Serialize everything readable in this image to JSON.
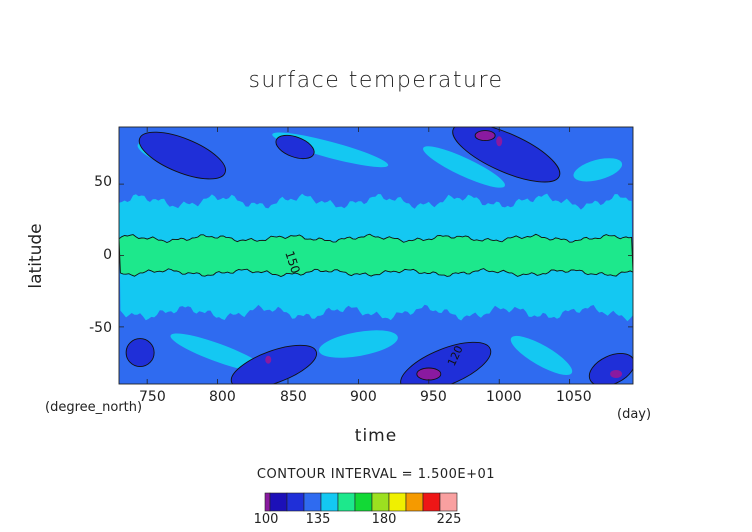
{
  "chart_data": {
    "type": "heatmap",
    "title": "surface temperature",
    "xlabel": "time",
    "ylabel": "latitude",
    "x_unit": "(day)",
    "y_unit": "(degree_north)",
    "xlim": [
      730,
      1095
    ],
    "ylim": [
      -90,
      90
    ],
    "x_ticks": [
      "750",
      "800",
      "850",
      "900",
      "950",
      "1000",
      "1050"
    ],
    "y_ticks": [
      "50",
      "0",
      "-50"
    ],
    "contour_interval_text": "CONTOUR INTERVAL = 1.500E+01",
    "contour_labels": [
      "150",
      "120"
    ],
    "colorbar": {
      "levels": [
        100,
        105,
        120,
        135,
        150,
        165,
        180,
        195,
        210,
        225,
        240,
        255
      ],
      "tick_labels": [
        "100",
        "135",
        "180",
        "225"
      ],
      "colors": [
        "#8a1aa0",
        "#1c10b8",
        "#1f2fd8",
        "#2f6bf0",
        "#14c8f2",
        "#1de88c",
        "#12d936",
        "#9ce020",
        "#f0f000",
        "#f59a00",
        "#ee1616",
        "#f9a0a0"
      ]
    },
    "band_colors": {
      "deep_purple": "#8a1aa0",
      "dark_blue": "#1f2fd8",
      "mid_blue": "#2f6bf0",
      "cyan": "#14c8f2",
      "green": "#1de88c"
    }
  }
}
